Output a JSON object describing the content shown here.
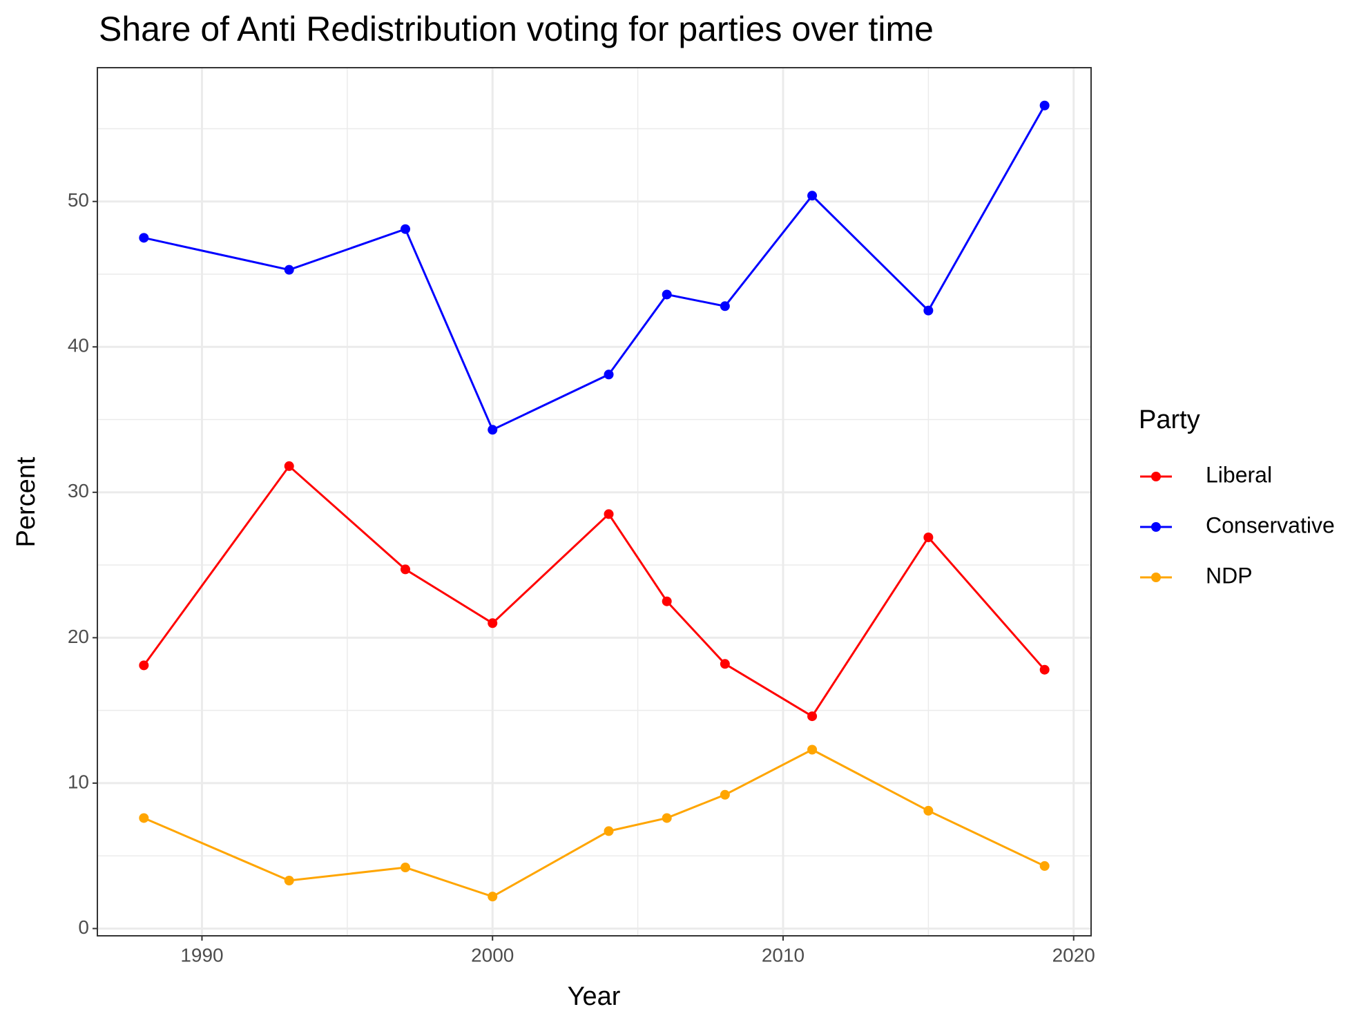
{
  "chart_data": {
    "type": "line",
    "title": "Share of Anti Redistribution voting for parties over time",
    "x_label": "Year",
    "y_label": "Percent",
    "legend_title": "Party",
    "x": [
      1988,
      1993,
      1997,
      2000,
      2004,
      2006,
      2008,
      2011,
      2015,
      2019
    ],
    "series": [
      {
        "name": "Liberal",
        "color": "#ff0000",
        "values": [
          18.1,
          31.8,
          24.7,
          21.0,
          28.5,
          22.5,
          18.2,
          14.6,
          26.9,
          17.8
        ]
      },
      {
        "name": "Conservative",
        "color": "#0000ff",
        "values": [
          47.5,
          45.3,
          48.1,
          34.3,
          38.1,
          43.6,
          42.8,
          50.4,
          42.5,
          56.6
        ]
      },
      {
        "name": "NDP",
        "color": "#ffa500",
        "values": [
          7.6,
          3.3,
          4.2,
          2.2,
          6.7,
          7.6,
          9.2,
          12.3,
          8.1,
          4.3
        ]
      }
    ],
    "xlim": [
      1986.4,
      2020.6
    ],
    "xticks": [
      1990,
      2000,
      2010,
      2020
    ],
    "minor_xticks": [
      1995,
      2005,
      2015
    ],
    "ylim": [
      -0.5,
      59.2
    ],
    "yticks": [
      0,
      10,
      20,
      30,
      40,
      50
    ],
    "minor_yticks": [
      5,
      15,
      25,
      35,
      45,
      55
    ],
    "grid": true,
    "legend_position": "right"
  }
}
